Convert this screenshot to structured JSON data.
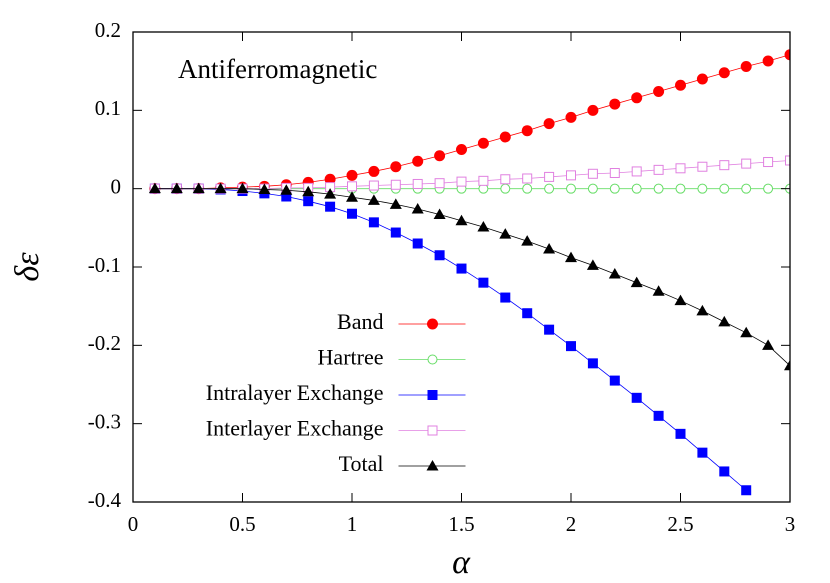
{
  "chart_data": {
    "type": "line",
    "annotation": "Antiferromagnetic",
    "xlabel": "α",
    "ylabel": "δε",
    "x": [
      0.1,
      0.2,
      0.3,
      0.4,
      0.5,
      0.6,
      0.7,
      0.8,
      0.9,
      1.0,
      1.1,
      1.2,
      1.3,
      1.4,
      1.5,
      1.6,
      1.7,
      1.8,
      1.9,
      2.0,
      2.1,
      2.2,
      2.3,
      2.4,
      2.5,
      2.6,
      2.7,
      2.8,
      2.9,
      3.0
    ],
    "series": [
      {
        "name": "Band",
        "color": "#ff0000",
        "marker": "circle",
        "filled": true,
        "values": [
          0,
          0,
          0,
          0.001,
          0.002,
          0.003,
          0.005,
          0.008,
          0.012,
          0.017,
          0.022,
          0.028,
          0.035,
          0.042,
          0.05,
          0.058,
          0.066,
          0.074,
          0.083,
          0.091,
          0.1,
          0.108,
          0.116,
          0.124,
          0.132,
          0.14,
          0.148,
          0.156,
          0.163,
          0.171
        ]
      },
      {
        "name": "Hartree",
        "color": "#66dd66",
        "marker": "circle",
        "filled": false,
        "values": [
          0,
          0,
          0,
          0,
          0,
          0,
          0,
          0,
          0,
          0,
          0,
          0,
          0,
          0,
          0,
          0,
          0,
          0,
          0,
          0,
          0,
          0,
          0,
          0,
          0,
          0,
          0,
          0,
          0,
          0
        ]
      },
      {
        "name": "Intralayer Exchange",
        "color": "#0000ff",
        "marker": "square",
        "filled": true,
        "values": [
          0,
          0,
          0,
          -0.001,
          -0.003,
          -0.006,
          -0.01,
          -0.016,
          -0.023,
          -0.032,
          -0.043,
          -0.056,
          -0.07,
          -0.085,
          -0.102,
          -0.12,
          -0.139,
          -0.159,
          -0.18,
          -0.201,
          -0.223,
          -0.245,
          -0.267,
          -0.29,
          -0.313,
          -0.337,
          -0.361,
          -0.385,
          null,
          null
        ]
      },
      {
        "name": "Interlayer Exchange",
        "color": "#e080e0",
        "marker": "square",
        "filled": false,
        "values": [
          0,
          0,
          0,
          0,
          0,
          0,
          0.001,
          0.001,
          0.002,
          0.003,
          0.004,
          0.005,
          0.006,
          0.007,
          0.009,
          0.01,
          0.012,
          0.013,
          0.015,
          0.017,
          0.019,
          0.02,
          0.022,
          0.024,
          0.026,
          0.028,
          0.03,
          0.032,
          0.034,
          0.036
        ]
      },
      {
        "name": "Total",
        "color": "#000000",
        "marker": "triangle",
        "filled": true,
        "values": [
          0,
          0,
          0,
          0,
          0,
          -0.001,
          -0.002,
          -0.004,
          -0.007,
          -0.011,
          -0.015,
          -0.02,
          -0.026,
          -0.033,
          -0.041,
          -0.049,
          -0.058,
          -0.067,
          -0.077,
          -0.088,
          -0.098,
          -0.109,
          -0.12,
          -0.131,
          -0.143,
          -0.156,
          -0.17,
          -0.184,
          -0.2,
          -0.226
        ]
      }
    ],
    "xlim": [
      0,
      3
    ],
    "ylim": [
      -0.4,
      0.2
    ],
    "xticks": [
      0,
      0.5,
      1,
      1.5,
      2,
      2.5,
      3
    ],
    "yticks": [
      -0.4,
      -0.3,
      -0.2,
      -0.1,
      0,
      0.1,
      0.2
    ],
    "legend": "lower center"
  }
}
